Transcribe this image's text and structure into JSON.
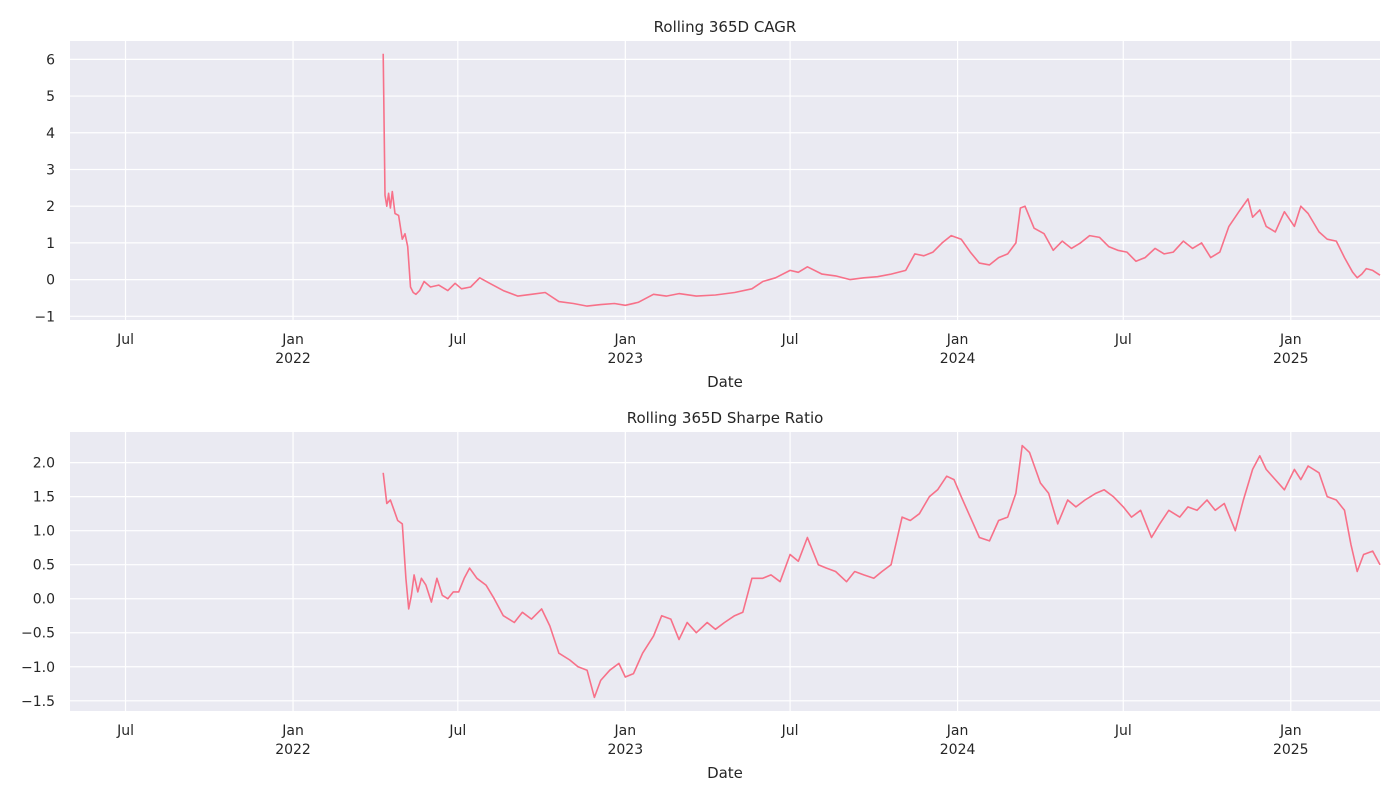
{
  "figure": {
    "background": "#ffffff",
    "plot_background": "#eaeaf2",
    "grid_color": "#ffffff",
    "line_color": "#f77189"
  },
  "chart_data": [
    {
      "type": "line",
      "title": "Rolling 365D CAGR",
      "xlabel": "Date",
      "ylabel": "",
      "grid": true,
      "xlim": [
        "2021-05-01",
        "2025-04-09"
      ],
      "ylim": [
        -1.1,
        6.5
      ],
      "x_ticks": [
        {
          "date": "2021-07-01",
          "label": "Jul",
          "sub": ""
        },
        {
          "date": "2022-01-01",
          "label": "Jan",
          "sub": "2022"
        },
        {
          "date": "2022-07-01",
          "label": "Jul",
          "sub": ""
        },
        {
          "date": "2023-01-01",
          "label": "Jan",
          "sub": "2023"
        },
        {
          "date": "2023-07-01",
          "label": "Jul",
          "sub": ""
        },
        {
          "date": "2024-01-01",
          "label": "Jan",
          "sub": "2024"
        },
        {
          "date": "2024-07-01",
          "label": "Jul",
          "sub": ""
        },
        {
          "date": "2025-01-01",
          "label": "Jan",
          "sub": "2025"
        }
      ],
      "y_ticks": [
        {
          "value": -1,
          "label": "−1"
        },
        {
          "value": 0,
          "label": "0"
        },
        {
          "value": 1,
          "label": "1"
        },
        {
          "value": 2,
          "label": "2"
        },
        {
          "value": 3,
          "label": "3"
        },
        {
          "value": 4,
          "label": "4"
        },
        {
          "value": 5,
          "label": "5"
        },
        {
          "value": 6,
          "label": "6"
        }
      ],
      "series": [
        {
          "x": [
            "2022-04-10",
            "2022-04-12",
            "2022-04-14",
            "2022-04-16",
            "2022-04-18",
            "2022-04-20",
            "2022-04-23",
            "2022-04-27",
            "2022-05-01",
            "2022-05-04",
            "2022-05-07",
            "2022-05-10",
            "2022-05-13",
            "2022-05-16",
            "2022-05-20",
            "2022-05-25",
            "2022-06-01",
            "2022-06-10",
            "2022-06-20",
            "2022-06-28",
            "2022-07-05",
            "2022-07-15",
            "2022-07-25",
            "2022-08-05",
            "2022-08-20",
            "2022-09-05",
            "2022-09-20",
            "2022-10-05",
            "2022-10-20",
            "2022-11-05",
            "2022-11-20",
            "2022-12-05",
            "2022-12-20",
            "2023-01-01",
            "2023-01-15",
            "2023-02-01",
            "2023-02-15",
            "2023-03-01",
            "2023-03-20",
            "2023-04-10",
            "2023-05-01",
            "2023-05-20",
            "2023-06-01",
            "2023-06-15",
            "2023-07-01",
            "2023-07-10",
            "2023-07-20",
            "2023-08-05",
            "2023-08-20",
            "2023-09-05",
            "2023-09-20",
            "2023-10-05",
            "2023-10-20",
            "2023-11-05",
            "2023-11-15",
            "2023-11-25",
            "2023-12-05",
            "2023-12-15",
            "2023-12-25",
            "2024-01-05",
            "2024-01-15",
            "2024-01-25",
            "2024-02-05",
            "2024-02-15",
            "2024-02-25",
            "2024-03-05",
            "2024-03-10",
            "2024-03-15",
            "2024-03-25",
            "2024-04-05",
            "2024-04-15",
            "2024-04-25",
            "2024-05-05",
            "2024-05-15",
            "2024-05-25",
            "2024-06-05",
            "2024-06-15",
            "2024-06-25",
            "2024-07-05",
            "2024-07-15",
            "2024-07-25",
            "2024-08-05",
            "2024-08-15",
            "2024-08-25",
            "2024-09-05",
            "2024-09-15",
            "2024-09-25",
            "2024-10-05",
            "2024-10-15",
            "2024-10-25",
            "2024-11-05",
            "2024-11-15",
            "2024-11-20",
            "2024-11-28",
            "2024-12-05",
            "2024-12-15",
            "2024-12-25",
            "2025-01-05",
            "2025-01-12",
            "2025-01-20",
            "2025-02-01",
            "2025-02-10",
            "2025-02-20",
            "2025-03-01",
            "2025-03-10",
            "2025-03-15",
            "2025-03-20",
            "2025-03-25",
            "2025-04-01",
            "2025-04-09"
          ],
          "values": [
            6.15,
            2.3,
            2.0,
            2.35,
            1.95,
            2.4,
            1.8,
            1.75,
            1.1,
            1.25,
            0.9,
            -0.2,
            -0.35,
            -0.4,
            -0.3,
            -0.05,
            -0.2,
            -0.15,
            -0.3,
            -0.1,
            -0.25,
            -0.2,
            0.05,
            -0.1,
            -0.3,
            -0.45,
            -0.4,
            -0.35,
            -0.6,
            -0.65,
            -0.72,
            -0.68,
            -0.65,
            -0.7,
            -0.62,
            -0.4,
            -0.45,
            -0.38,
            -0.45,
            -0.42,
            -0.35,
            -0.25,
            -0.05,
            0.05,
            0.25,
            0.2,
            0.35,
            0.15,
            0.1,
            0.0,
            0.05,
            0.08,
            0.15,
            0.25,
            0.7,
            0.65,
            0.75,
            1.0,
            1.2,
            1.1,
            0.75,
            0.45,
            0.4,
            0.6,
            0.7,
            1.0,
            1.95,
            2.0,
            1.4,
            1.25,
            0.8,
            1.05,
            0.85,
            1.0,
            1.2,
            1.15,
            0.9,
            0.8,
            0.75,
            0.5,
            0.6,
            0.85,
            0.7,
            0.75,
            1.05,
            0.85,
            1.0,
            0.6,
            0.75,
            1.45,
            1.85,
            2.2,
            1.7,
            1.9,
            1.45,
            1.3,
            1.85,
            1.45,
            2.0,
            1.8,
            1.3,
            1.1,
            1.05,
            0.6,
            0.2,
            0.05,
            0.15,
            0.3,
            0.25,
            0.12
          ]
        }
      ]
    },
    {
      "type": "line",
      "title": "Rolling 365D Sharpe Ratio",
      "xlabel": "Date",
      "ylabel": "",
      "grid": true,
      "xlim": [
        "2021-05-01",
        "2025-04-09"
      ],
      "ylim": [
        -1.65,
        2.45
      ],
      "x_ticks": [
        {
          "date": "2021-07-01",
          "label": "Jul",
          "sub": ""
        },
        {
          "date": "2022-01-01",
          "label": "Jan",
          "sub": "2022"
        },
        {
          "date": "2022-07-01",
          "label": "Jul",
          "sub": ""
        },
        {
          "date": "2023-01-01",
          "label": "Jan",
          "sub": "2023"
        },
        {
          "date": "2023-07-01",
          "label": "Jul",
          "sub": ""
        },
        {
          "date": "2024-01-01",
          "label": "Jan",
          "sub": "2024"
        },
        {
          "date": "2024-07-01",
          "label": "Jul",
          "sub": ""
        },
        {
          "date": "2025-01-01",
          "label": "Jan",
          "sub": "2025"
        }
      ],
      "y_ticks": [
        {
          "value": -1.5,
          "label": "−1.5"
        },
        {
          "value": -1.0,
          "label": "−1.0"
        },
        {
          "value": -0.5,
          "label": "−0.5"
        },
        {
          "value": 0.0,
          "label": "0.0"
        },
        {
          "value": 0.5,
          "label": "0.5"
        },
        {
          "value": 1.0,
          "label": "1.0"
        },
        {
          "value": 1.5,
          "label": "1.5"
        },
        {
          "value": 2.0,
          "label": "2.0"
        }
      ],
      "series": [
        {
          "x": [
            "2022-04-10",
            "2022-04-14",
            "2022-04-18",
            "2022-04-22",
            "2022-04-26",
            "2022-05-01",
            "2022-05-05",
            "2022-05-08",
            "2022-05-11",
            "2022-05-14",
            "2022-05-18",
            "2022-05-22",
            "2022-05-27",
            "2022-06-02",
            "2022-06-08",
            "2022-06-14",
            "2022-06-20",
            "2022-06-26",
            "2022-07-02",
            "2022-07-08",
            "2022-07-14",
            "2022-07-22",
            "2022-08-01",
            "2022-08-10",
            "2022-08-20",
            "2022-09-01",
            "2022-09-10",
            "2022-09-20",
            "2022-10-01",
            "2022-10-10",
            "2022-10-20",
            "2022-11-01",
            "2022-11-10",
            "2022-11-20",
            "2022-11-28",
            "2022-12-05",
            "2022-12-15",
            "2022-12-25",
            "2023-01-01",
            "2023-01-10",
            "2023-01-20",
            "2023-02-01",
            "2023-02-10",
            "2023-02-20",
            "2023-03-01",
            "2023-03-10",
            "2023-03-20",
            "2023-04-01",
            "2023-04-10",
            "2023-04-20",
            "2023-05-01",
            "2023-05-10",
            "2023-05-20",
            "2023-06-01",
            "2023-06-10",
            "2023-06-20",
            "2023-07-01",
            "2023-07-10",
            "2023-07-20",
            "2023-08-01",
            "2023-08-10",
            "2023-08-20",
            "2023-09-01",
            "2023-09-10",
            "2023-09-20",
            "2023-10-01",
            "2023-10-10",
            "2023-10-20",
            "2023-11-01",
            "2023-11-10",
            "2023-11-20",
            "2023-12-01",
            "2023-12-10",
            "2023-12-20",
            "2023-12-28",
            "2024-01-05",
            "2024-01-15",
            "2024-01-25",
            "2024-02-05",
            "2024-02-15",
            "2024-02-25",
            "2024-03-05",
            "2024-03-12",
            "2024-03-20",
            "2024-04-01",
            "2024-04-10",
            "2024-04-20",
            "2024-05-01",
            "2024-05-10",
            "2024-05-20",
            "2024-06-01",
            "2024-06-10",
            "2024-06-20",
            "2024-07-01",
            "2024-07-10",
            "2024-07-20",
            "2024-08-01",
            "2024-08-10",
            "2024-08-20",
            "2024-09-01",
            "2024-09-10",
            "2024-09-20",
            "2024-10-01",
            "2024-10-10",
            "2024-10-20",
            "2024-11-01",
            "2024-11-10",
            "2024-11-20",
            "2024-11-28",
            "2024-12-05",
            "2024-12-15",
            "2024-12-25",
            "2025-01-05",
            "2025-01-12",
            "2025-01-20",
            "2025-02-01",
            "2025-02-10",
            "2025-02-20",
            "2025-03-01",
            "2025-03-08",
            "2025-03-15",
            "2025-03-22",
            "2025-04-01",
            "2025-04-09"
          ],
          "values": [
            1.85,
            1.4,
            1.45,
            1.3,
            1.15,
            1.1,
            0.3,
            -0.15,
            0.05,
            0.35,
            0.1,
            0.3,
            0.2,
            -0.05,
            0.3,
            0.05,
            0.0,
            0.1,
            0.1,
            0.3,
            0.45,
            0.3,
            0.2,
            0.0,
            -0.25,
            -0.35,
            -0.2,
            -0.3,
            -0.15,
            -0.4,
            -0.8,
            -0.9,
            -1.0,
            -1.05,
            -1.45,
            -1.2,
            -1.05,
            -0.95,
            -1.15,
            -1.1,
            -0.8,
            -0.55,
            -0.25,
            -0.3,
            -0.6,
            -0.35,
            -0.5,
            -0.35,
            -0.45,
            -0.35,
            -0.25,
            -0.2,
            0.3,
            0.3,
            0.35,
            0.25,
            0.65,
            0.55,
            0.9,
            0.5,
            0.45,
            0.4,
            0.25,
            0.4,
            0.35,
            0.3,
            0.4,
            0.5,
            1.2,
            1.15,
            1.25,
            1.5,
            1.6,
            1.8,
            1.75,
            1.5,
            1.2,
            0.9,
            0.85,
            1.15,
            1.2,
            1.55,
            2.25,
            2.15,
            1.7,
            1.55,
            1.1,
            1.45,
            1.35,
            1.45,
            1.55,
            1.6,
            1.5,
            1.35,
            1.2,
            1.3,
            0.9,
            1.1,
            1.3,
            1.2,
            1.35,
            1.3,
            1.45,
            1.3,
            1.4,
            1.0,
            1.45,
            1.9,
            2.1,
            1.9,
            1.75,
            1.6,
            1.9,
            1.75,
            1.95,
            1.85,
            1.5,
            1.45,
            1.3,
            0.8,
            0.4,
            0.65,
            0.7,
            0.5
          ]
        }
      ]
    }
  ]
}
